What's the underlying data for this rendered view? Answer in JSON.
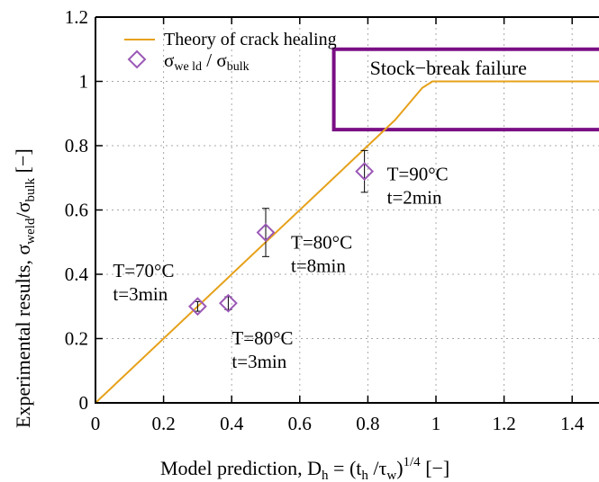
{
  "chart_data": {
    "type": "scatter",
    "xlabel": {
      "main": "Model prediction, D",
      "sub1": "h",
      "eq": " = (t",
      "sub2": "h",
      "slash": " /τ",
      "sub3": "w",
      "close": ")",
      "sup": "1/4",
      "unit": " [−]"
    },
    "ylabel": {
      "main": "Experimental results, σ",
      "sub1": "weld",
      "slash": "/σ",
      "sub2": "bulk",
      "unit": " [−]"
    },
    "xlim": [
      0,
      1.5
    ],
    "ylim": [
      0,
      1.2
    ],
    "x_ticks": [
      "0",
      "0.2",
      "0.4",
      "0.6",
      "0.8",
      "1",
      "1.2",
      "1.4"
    ],
    "y_ticks": [
      "0",
      "0.2",
      "0.4",
      "0.6",
      "0.8",
      "1",
      "1.2"
    ],
    "x_tick_values": [
      0,
      0.2,
      0.4,
      0.6,
      0.8,
      1.0,
      1.2,
      1.4
    ],
    "y_tick_values": [
      0,
      0.2,
      0.4,
      0.6,
      0.8,
      1.0,
      1.2
    ],
    "grid": true,
    "legend_placement": "top-left",
    "theory_curve": {
      "name": "Theory of crack healing",
      "color": "#e6a11a",
      "points": [
        [
          0,
          0
        ],
        [
          0.88,
          0.88
        ],
        [
          0.92,
          0.93
        ],
        [
          0.96,
          0.98
        ],
        [
          0.99,
          1.0
        ],
        [
          1.5,
          1.0
        ]
      ]
    },
    "experimental": {
      "legend": {
        "main": "σ",
        "sub1": "we ld",
        "slash": " / σ",
        "sub2": "bulk"
      },
      "color": "#9b59b6",
      "points": [
        {
          "x": 0.3,
          "y": 0.3,
          "err": 0.015,
          "label_T": "T=70°C",
          "label_t": "t=3min"
        },
        {
          "x": 0.39,
          "y": 0.31,
          "err": 0.02,
          "label_T": "T=80°C",
          "label_t": "t=3min"
        },
        {
          "x": 0.5,
          "y": 0.53,
          "err": 0.075,
          "label_T": "T=80°C",
          "label_t": "t=8min"
        },
        {
          "x": 0.79,
          "y": 0.72,
          "err": 0.065,
          "label_T": "T=90°C",
          "label_t": "t=2min"
        }
      ]
    },
    "annotation_box": {
      "text": "Stock−break failure",
      "color": "#7a0f84",
      "x_range": [
        0.7,
        1.5
      ],
      "y_range": [
        0.85,
        1.1
      ]
    }
  }
}
